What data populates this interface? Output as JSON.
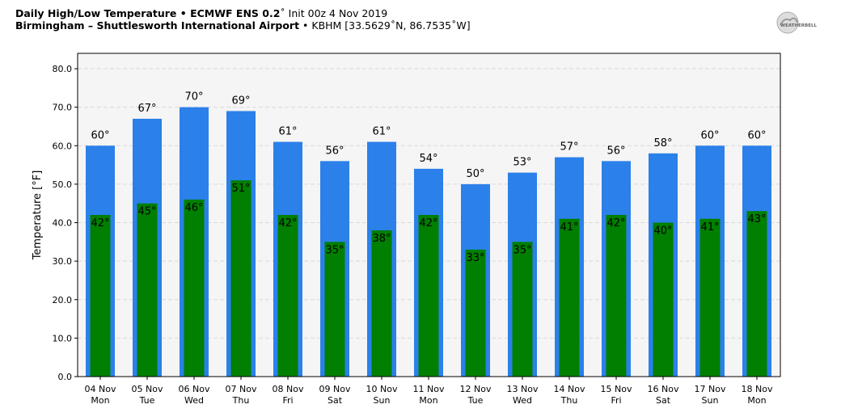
{
  "header": {
    "line1_bold": "Daily High/Low Temperature • ECMWF ENS 0.2",
    "line1_deg": "˚",
    "line1_rest": " Init 00z 4 Nov 2019",
    "line2_bold": "Birmingham – Shuttlesworth International Airport",
    "line2_rest": " • KBHM [33.5629˚N, 86.7535˚W]"
  },
  "logo": {
    "text": "WEATHERBELL",
    "icon": "weatherbell-logo-icon"
  },
  "colors": {
    "high": "#2b80ea",
    "low": "#007f00",
    "plot_bg": "#f5f5f5",
    "grid": "#d9d9d9"
  },
  "chart_data": {
    "type": "bar",
    "title": "",
    "xlabel": "",
    "ylabel": "Temperature [°F]",
    "ylim": [
      0,
      84
    ],
    "yticks": [
      "0.0",
      "10.0",
      "20.0",
      "30.0",
      "40.0",
      "50.0",
      "60.0",
      "70.0",
      "80.0"
    ],
    "ytick_values": [
      0,
      10,
      20,
      30,
      40,
      50,
      60,
      70,
      80
    ],
    "grid": true,
    "categories": [
      "04 Nov",
      "05 Nov",
      "06 Nov",
      "07 Nov",
      "08 Nov",
      "09 Nov",
      "10 Nov",
      "11 Nov",
      "12 Nov",
      "13 Nov",
      "14 Nov",
      "15 Nov",
      "16 Nov",
      "17 Nov",
      "18 Nov"
    ],
    "weekdays": [
      "Mon",
      "Tue",
      "Wed",
      "Thu",
      "Fri",
      "Sat",
      "Sun",
      "Mon",
      "Tue",
      "Wed",
      "Thu",
      "Fri",
      "Sat",
      "Sun",
      "Mon"
    ],
    "series": [
      {
        "values": [
          60,
          67,
          70,
          69,
          61,
          56,
          61,
          54,
          50,
          53,
          57,
          56,
          58,
          60,
          60
        ],
        "labels": [
          "60°",
          "67°",
          "70°",
          "69°",
          "61°",
          "56°",
          "61°",
          "54°",
          "50°",
          "53°",
          "57°",
          "56°",
          "58°",
          "60°",
          "60°"
        ]
      },
      {
        "values": [
          42,
          45,
          46,
          51,
          42,
          35,
          38,
          42,
          33,
          35,
          41,
          42,
          40,
          41,
          43
        ],
        "labels": [
          "42°",
          "45°",
          "46°",
          "51°",
          "42°",
          "35°",
          "38°",
          "42°",
          "33°",
          "35°",
          "41°",
          "42°",
          "40°",
          "41°",
          "43°"
        ]
      }
    ]
  }
}
